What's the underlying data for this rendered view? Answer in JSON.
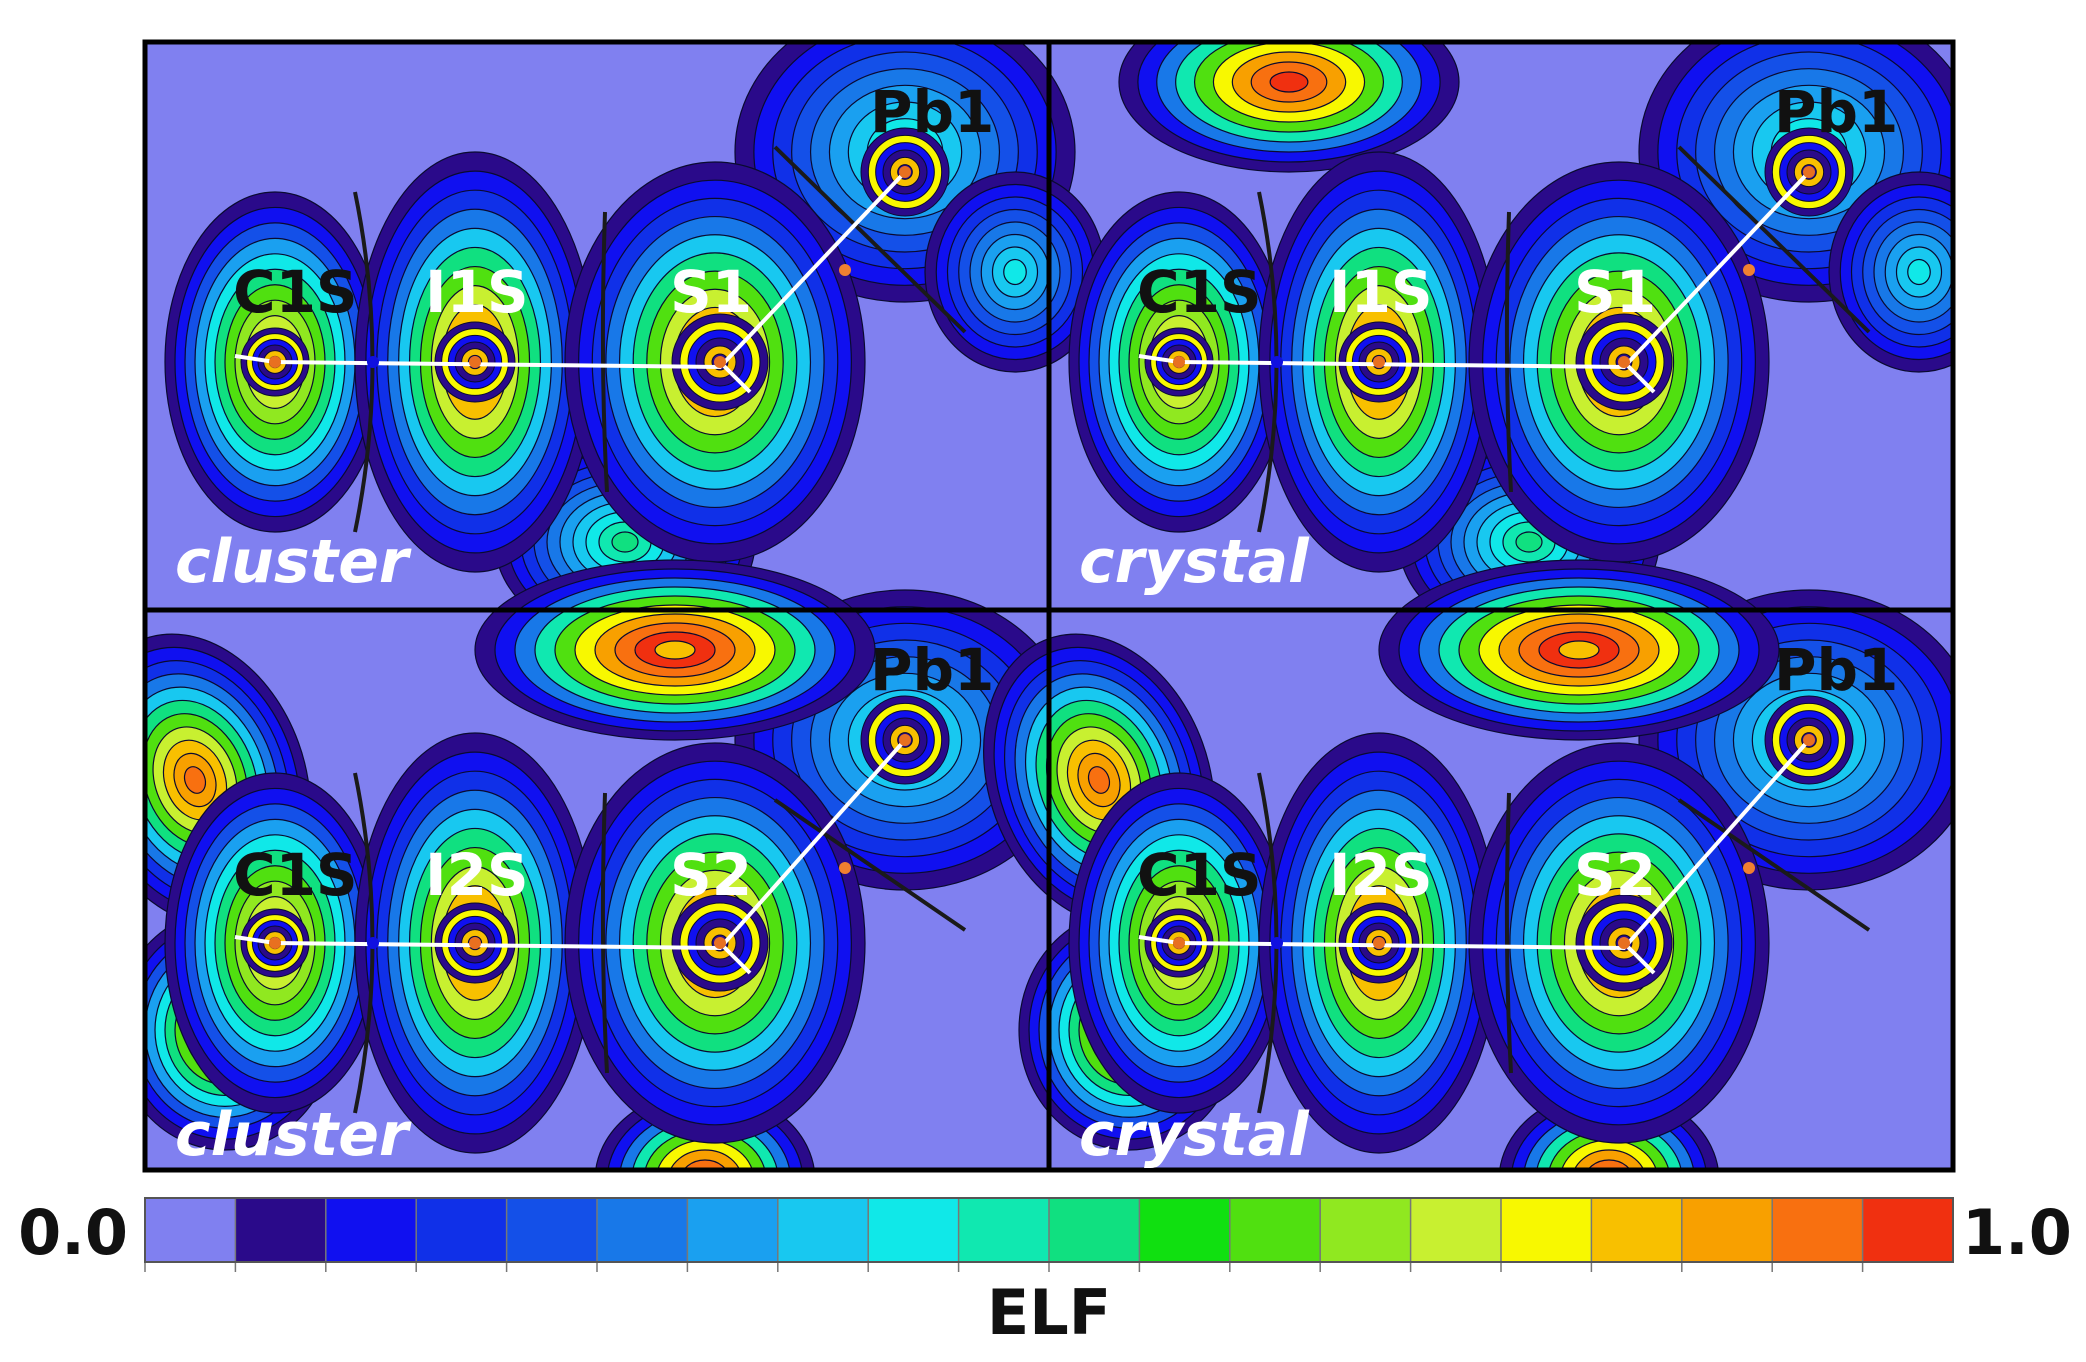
{
  "figure": {
    "panels": [
      {
        "mode": "cluster",
        "atoms": {
          "pb": "Pb1",
          "s": "S1",
          "i": "I1S",
          "c": "C1S"
        }
      },
      {
        "mode": "crystal",
        "atoms": {
          "pb": "Pb1",
          "s": "S1",
          "i": "I1S",
          "c": "C1S"
        }
      },
      {
        "mode": "cluster",
        "atoms": {
          "pb": "Pb1",
          "s": "S2",
          "i": "I2S",
          "c": "C1S"
        }
      },
      {
        "mode": "crystal",
        "atoms": {
          "pb": "Pb1",
          "s": "S2",
          "i": "I2S",
          "c": "C1S"
        }
      }
    ],
    "colorbar": {
      "min_label": "0.0",
      "max_label": "1.0",
      "title": "ELF",
      "colors": [
        "#8080f0",
        "#2a0a8a",
        "#1010f0",
        "#1030e8",
        "#1450e8",
        "#1878e8",
        "#1aa0f0",
        "#18c8f0",
        "#10e8e8",
        "#10e8b0",
        "#10e080",
        "#10e010",
        "#50e010",
        "#90e820",
        "#c8f030",
        "#f8f800",
        "#f8c000",
        "#f8a000",
        "#f87010",
        "#f03010"
      ]
    }
  }
}
